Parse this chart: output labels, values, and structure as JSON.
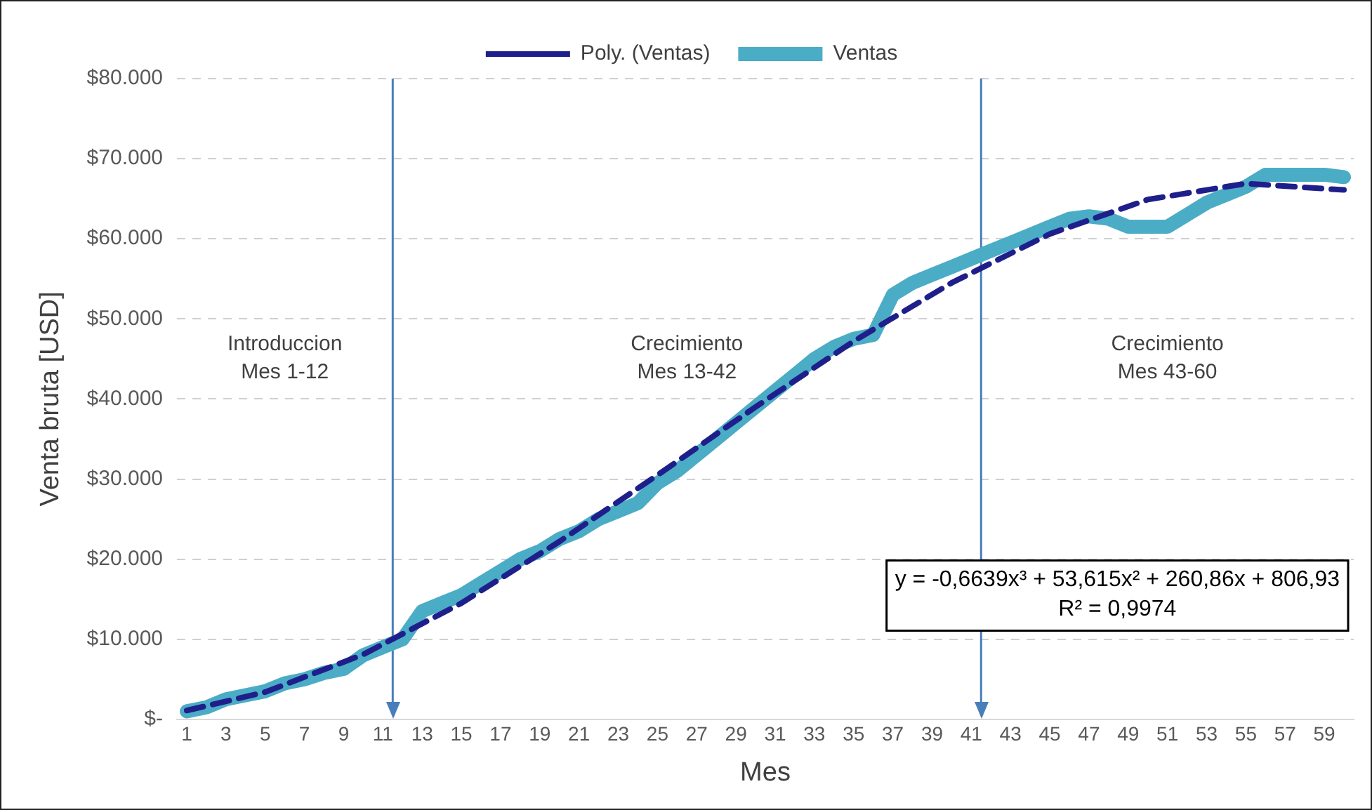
{
  "chart_data": {
    "type": "line",
    "xlabel": "Mes",
    "ylabel": "Venta bruta [USD]",
    "x": [
      1,
      2,
      3,
      4,
      5,
      6,
      7,
      8,
      9,
      10,
      11,
      12,
      13,
      14,
      15,
      16,
      17,
      18,
      19,
      20,
      21,
      22,
      23,
      24,
      25,
      26,
      27,
      28,
      29,
      30,
      31,
      32,
      33,
      34,
      35,
      36,
      37,
      38,
      39,
      40,
      41,
      42,
      43,
      44,
      45,
      46,
      47,
      48,
      49,
      50,
      51,
      52,
      53,
      54,
      55,
      56,
      57,
      58,
      59,
      60
    ],
    "series": [
      {
        "name": "Ventas",
        "color": "#4bacc6",
        "line_style": "solid",
        "values": [
          1000,
          1500,
          2500,
          3000,
          3500,
          4500,
          5000,
          5800,
          6300,
          8000,
          9000,
          10000,
          13500,
          14500,
          15500,
          17000,
          18500,
          20000,
          21000,
          22500,
          23500,
          25000,
          26000,
          27000,
          29500,
          31000,
          33000,
          35000,
          37000,
          39000,
          41000,
          43000,
          45000,
          46500,
          47500,
          48000,
          53000,
          54500,
          55500,
          56500,
          57500,
          58500,
          59500,
          60500,
          61500,
          62500,
          62800,
          62500,
          61500,
          61500,
          61500,
          63000,
          64500,
          65500,
          66500,
          68000,
          68000,
          68000,
          68000,
          67700
        ]
      },
      {
        "name": "Poly. (Ventas)",
        "type": "line",
        "color": "#1f1f8c",
        "line_style": "dashed",
        "x": [
          1,
          5,
          10,
          15,
          20,
          25,
          30,
          35,
          40,
          45,
          50,
          55,
          60
        ],
        "values": [
          1100,
          3400,
          8100,
          14500,
          22200,
          30500,
          39000,
          47200,
          54500,
          60600,
          64900,
          66900,
          66100
        ]
      }
    ],
    "xlim": [
      0.5,
      60.5
    ],
    "xticks": [
      1,
      3,
      5,
      7,
      9,
      11,
      13,
      15,
      17,
      19,
      21,
      23,
      25,
      27,
      29,
      31,
      33,
      35,
      37,
      39,
      41,
      43,
      45,
      47,
      49,
      51,
      53,
      55,
      57,
      59
    ],
    "ylim": [
      0,
      80000
    ],
    "yticks": [
      {
        "value": 0,
        "label": "$-"
      },
      {
        "value": 10000,
        "label": "$10.000"
      },
      {
        "value": 20000,
        "label": "$20.000"
      },
      {
        "value": 30000,
        "label": "$30.000"
      },
      {
        "value": 40000,
        "label": "$40.000"
      },
      {
        "value": 50000,
        "label": "$50.000"
      },
      {
        "value": 60000,
        "label": "$60.000"
      },
      {
        "value": 70000,
        "label": "$70.000"
      },
      {
        "value": 80000,
        "label": "$80.000"
      }
    ],
    "ref_lines": [
      {
        "axis": "x",
        "value": 11.5,
        "color": "#4a7ebb"
      },
      {
        "axis": "x",
        "value": 41.5,
        "color": "#4a7ebb"
      }
    ],
    "annotations": [
      "Introduccion\nMes 1-12",
      "Crecimiento\nMes 13-42",
      "Crecimiento\nMes 43-60",
      "y = -0,6639x³ + 53,615x² + 260,86x + 806,93\nR² = 0,9974"
    ],
    "grid": "y",
    "legend": "top",
    "marker": "none"
  }
}
